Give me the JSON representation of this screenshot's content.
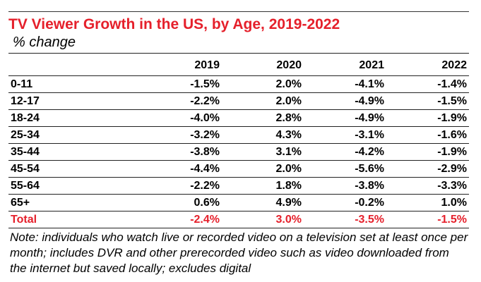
{
  "chart_data": {
    "type": "table",
    "title": "TV Viewer Growth in the US, by Age, 2019-2022",
    "subtitle": "% change",
    "columns": [
      "2019",
      "2020",
      "2021",
      "2022"
    ],
    "rows": [
      {
        "label": "0-11",
        "values": [
          "-1.5%",
          "2.0%",
          "-4.1%",
          "-1.4%"
        ]
      },
      {
        "label": "12-17",
        "values": [
          "-2.2%",
          "2.0%",
          "-4.9%",
          "-1.5%"
        ]
      },
      {
        "label": "18-24",
        "values": [
          "-4.0%",
          "2.8%",
          "-4.9%",
          "-1.9%"
        ]
      },
      {
        "label": "25-34",
        "values": [
          "-3.2%",
          "4.3%",
          "-3.1%",
          "-1.6%"
        ]
      },
      {
        "label": "35-44",
        "values": [
          "-3.8%",
          "3.1%",
          "-4.2%",
          "-1.9%"
        ]
      },
      {
        "label": "45-54",
        "values": [
          "-4.4%",
          "2.0%",
          "-5.6%",
          "-2.9%"
        ]
      },
      {
        "label": "55-64",
        "values": [
          "-2.2%",
          "1.8%",
          "-3.8%",
          "-3.3%"
        ]
      },
      {
        "label": "65+",
        "values": [
          "0.6%",
          "4.9%",
          "-0.2%",
          "1.0%"
        ]
      }
    ],
    "total": {
      "label": "Total",
      "values": [
        "-2.4%",
        "3.0%",
        "-3.5%",
        "-1.5%"
      ]
    },
    "note": "Note: individuals who watch live or recorded video on a television set at least once per month; includes DVR and other prerecorded video such as video downloaded from the internet but saved locally; excludes digital"
  },
  "colors": {
    "accent": "#e5202b",
    "text": "#000000",
    "rule": "#222222"
  }
}
